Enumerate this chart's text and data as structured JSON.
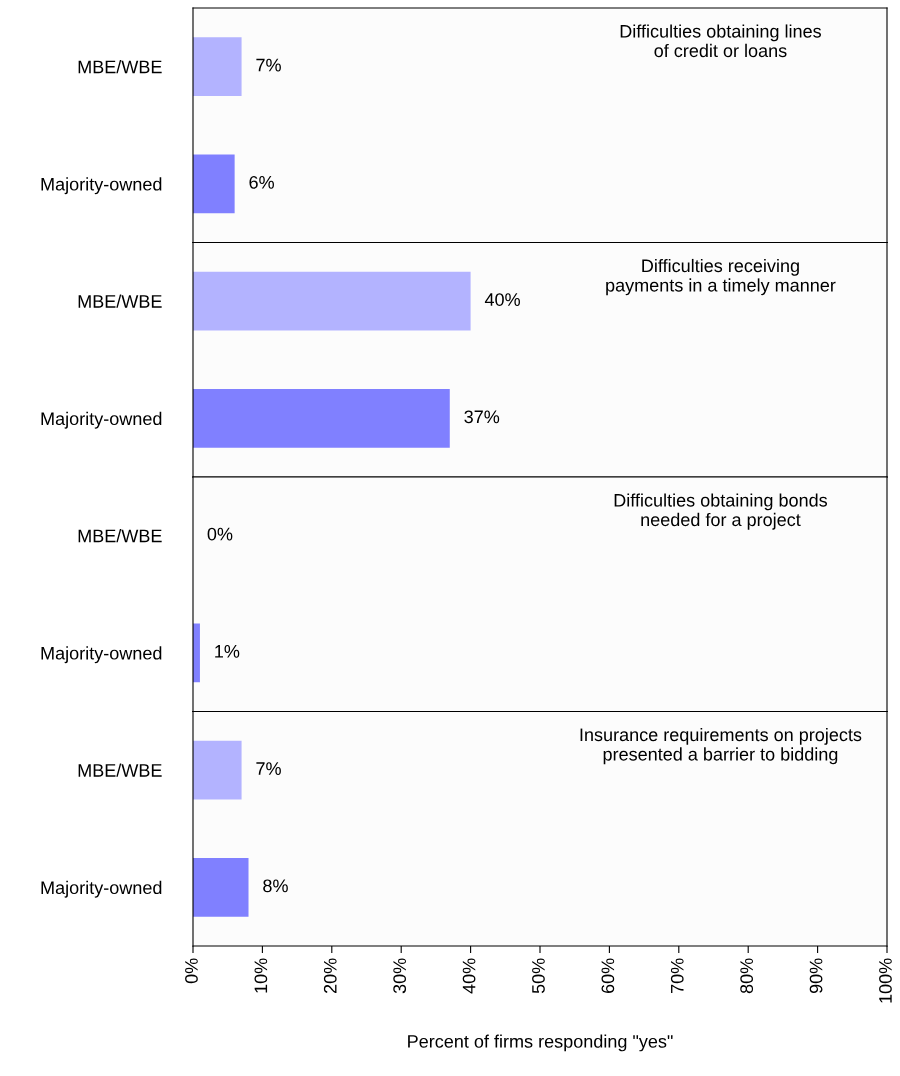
{
  "chart_data": [
    {
      "type": "bar",
      "orientation": "horizontal",
      "title": "Difficulties obtaining lines\nof credit or loans",
      "categories": [
        "MBE/WBE",
        "Majority-owned"
      ],
      "values": [
        7,
        6
      ],
      "colors": [
        "#b3b3ff",
        "#8080ff"
      ],
      "value_labels": [
        "7%",
        "6%"
      ],
      "xlim": [
        0,
        100
      ],
      "tick_labels": "y",
      "grid": false
    },
    {
      "type": "bar",
      "orientation": "horizontal",
      "title": "Difficulties receiving\npayments in a timely manner",
      "categories": [
        "MBE/WBE",
        "Majority-owned"
      ],
      "values": [
        40,
        37
      ],
      "colors": [
        "#b3b3ff",
        "#8080ff"
      ],
      "value_labels": [
        "40%",
        "37%"
      ],
      "xlim": [
        0,
        100
      ],
      "tick_labels": "y",
      "grid": false
    },
    {
      "type": "bar",
      "orientation": "horizontal",
      "title": "Difficulties obtaining bonds\nneeded for a project",
      "categories": [
        "MBE/WBE",
        "Majority-owned"
      ],
      "values": [
        0,
        1
      ],
      "colors": [
        "#b3b3ff",
        "#8080ff"
      ],
      "value_labels": [
        "0%",
        "1%"
      ],
      "xlim": [
        0,
        100
      ],
      "tick_labels": "y",
      "grid": false
    },
    {
      "type": "bar",
      "orientation": "horizontal",
      "title": "Insurance requirements on projects\npresented a barrier to bidding",
      "xlabel": "Percent of firms responding \"yes\"",
      "categories": [
        "MBE/WBE",
        "Majority-owned"
      ],
      "values": [
        7,
        8
      ],
      "colors": [
        "#b3b3ff",
        "#8080ff"
      ],
      "value_labels": [
        "7%",
        "8%"
      ],
      "xlim": [
        0,
        100
      ],
      "xticks": [
        {
          "value": 0,
          "label": "0%"
        },
        {
          "value": 10,
          "label": "10%"
        },
        {
          "value": 20,
          "label": "20%"
        },
        {
          "value": 30,
          "label": "30%"
        },
        {
          "value": 40,
          "label": "40%"
        },
        {
          "value": 50,
          "label": "50%"
        },
        {
          "value": 60,
          "label": "60%"
        },
        {
          "value": 70,
          "label": "70%"
        },
        {
          "value": 80,
          "label": "80%"
        },
        {
          "value": 90,
          "label": "90%"
        },
        {
          "value": 100,
          "label": "100%"
        }
      ],
      "grid": false
    }
  ]
}
